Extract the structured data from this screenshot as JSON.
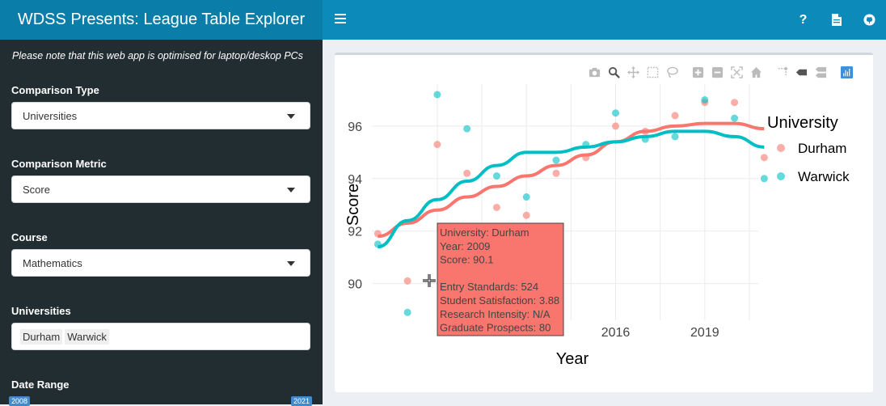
{
  "header": {
    "title": "WDSS Presents: League Table Explorer",
    "icons": [
      "question-icon",
      "file-icon",
      "github-icon"
    ],
    "help_symbol": "?"
  },
  "sidebar": {
    "note": "Please note that this web app is optimised for laptop/deskop PCs",
    "comparison_type": {
      "label": "Comparison Type",
      "value": "Universities"
    },
    "comparison_metric": {
      "label": "Comparison Metric",
      "value": "Score"
    },
    "course": {
      "label": "Course",
      "value": "Mathematics"
    },
    "universities": {
      "label": "Universities",
      "selected": [
        "Durham",
        "Warwick"
      ]
    },
    "date_range": {
      "label": "Date Range",
      "min": "2008",
      "max": "2021"
    }
  },
  "colors": {
    "durham": "#f8766d",
    "warwick": "#00bfc4",
    "header": "#0c8ab9",
    "sidebar": "#222d32"
  },
  "chart_data": {
    "type": "scatter",
    "xlabel": "Year",
    "ylabel": "Score",
    "x_ticks": [
      "2016",
      "2019"
    ],
    "y_ticks": [
      "90",
      "92",
      "94",
      "96"
    ],
    "xlim": [
      2007.8,
      2020.8
    ],
    "ylim": [
      88.6,
      97.6
    ],
    "legend_title": "University",
    "legend_position": "right",
    "series": [
      {
        "name": "Durham",
        "color": "#f8766d",
        "x": [
          2008,
          2009,
          2010,
          2011,
          2012,
          2013,
          2014,
          2015,
          2016,
          2017,
          2018,
          2019,
          2020,
          2021
        ],
        "y": [
          91.9,
          90.1,
          95.3,
          94.2,
          92.9,
          92.6,
          94.2,
          94.8,
          96.0,
          95.8,
          96.4,
          96.9,
          96.9,
          94.8
        ],
        "trend": [
          91.8,
          92.3,
          92.8,
          93.3,
          93.7,
          94.1,
          94.5,
          94.9,
          95.4,
          95.8,
          96.0,
          96.1,
          96.1,
          95.9
        ]
      },
      {
        "name": "Warwick",
        "color": "#00bfc4",
        "x": [
          2008,
          2009,
          2010,
          2011,
          2012,
          2013,
          2014,
          2015,
          2016,
          2017,
          2018,
          2019,
          2020,
          2021
        ],
        "y": [
          91.5,
          88.9,
          97.2,
          95.9,
          94.1,
          93.3,
          94.7,
          95.3,
          96.5,
          95.5,
          95.6,
          97.0,
          96.3,
          94.0
        ],
        "trend": [
          91.4,
          92.4,
          93.2,
          93.9,
          94.5,
          95.0,
          95.0,
          95.2,
          95.4,
          95.6,
          95.8,
          95.8,
          95.6,
          95.2
        ]
      }
    ],
    "tooltip": {
      "lines": [
        "University: Durham",
        "Year: 2009",
        "Score: 90.1",
        "",
        "Entry Standards: 524",
        "Student Satisfaction: 3.88",
        "Research Intensity: N/A",
        "Graduate Prospects: 80"
      ]
    }
  },
  "modebar": [
    "camera-icon",
    "zoom-icon",
    "pan-icon",
    "box-select-icon",
    "lasso-icon",
    "zoom-in-icon",
    "zoom-out-icon",
    "autoscale-icon",
    "reset-axes-icon",
    "spike-lines-icon",
    "hover-closest-icon",
    "hover-compare-icon",
    "plotly-logo-icon"
  ]
}
